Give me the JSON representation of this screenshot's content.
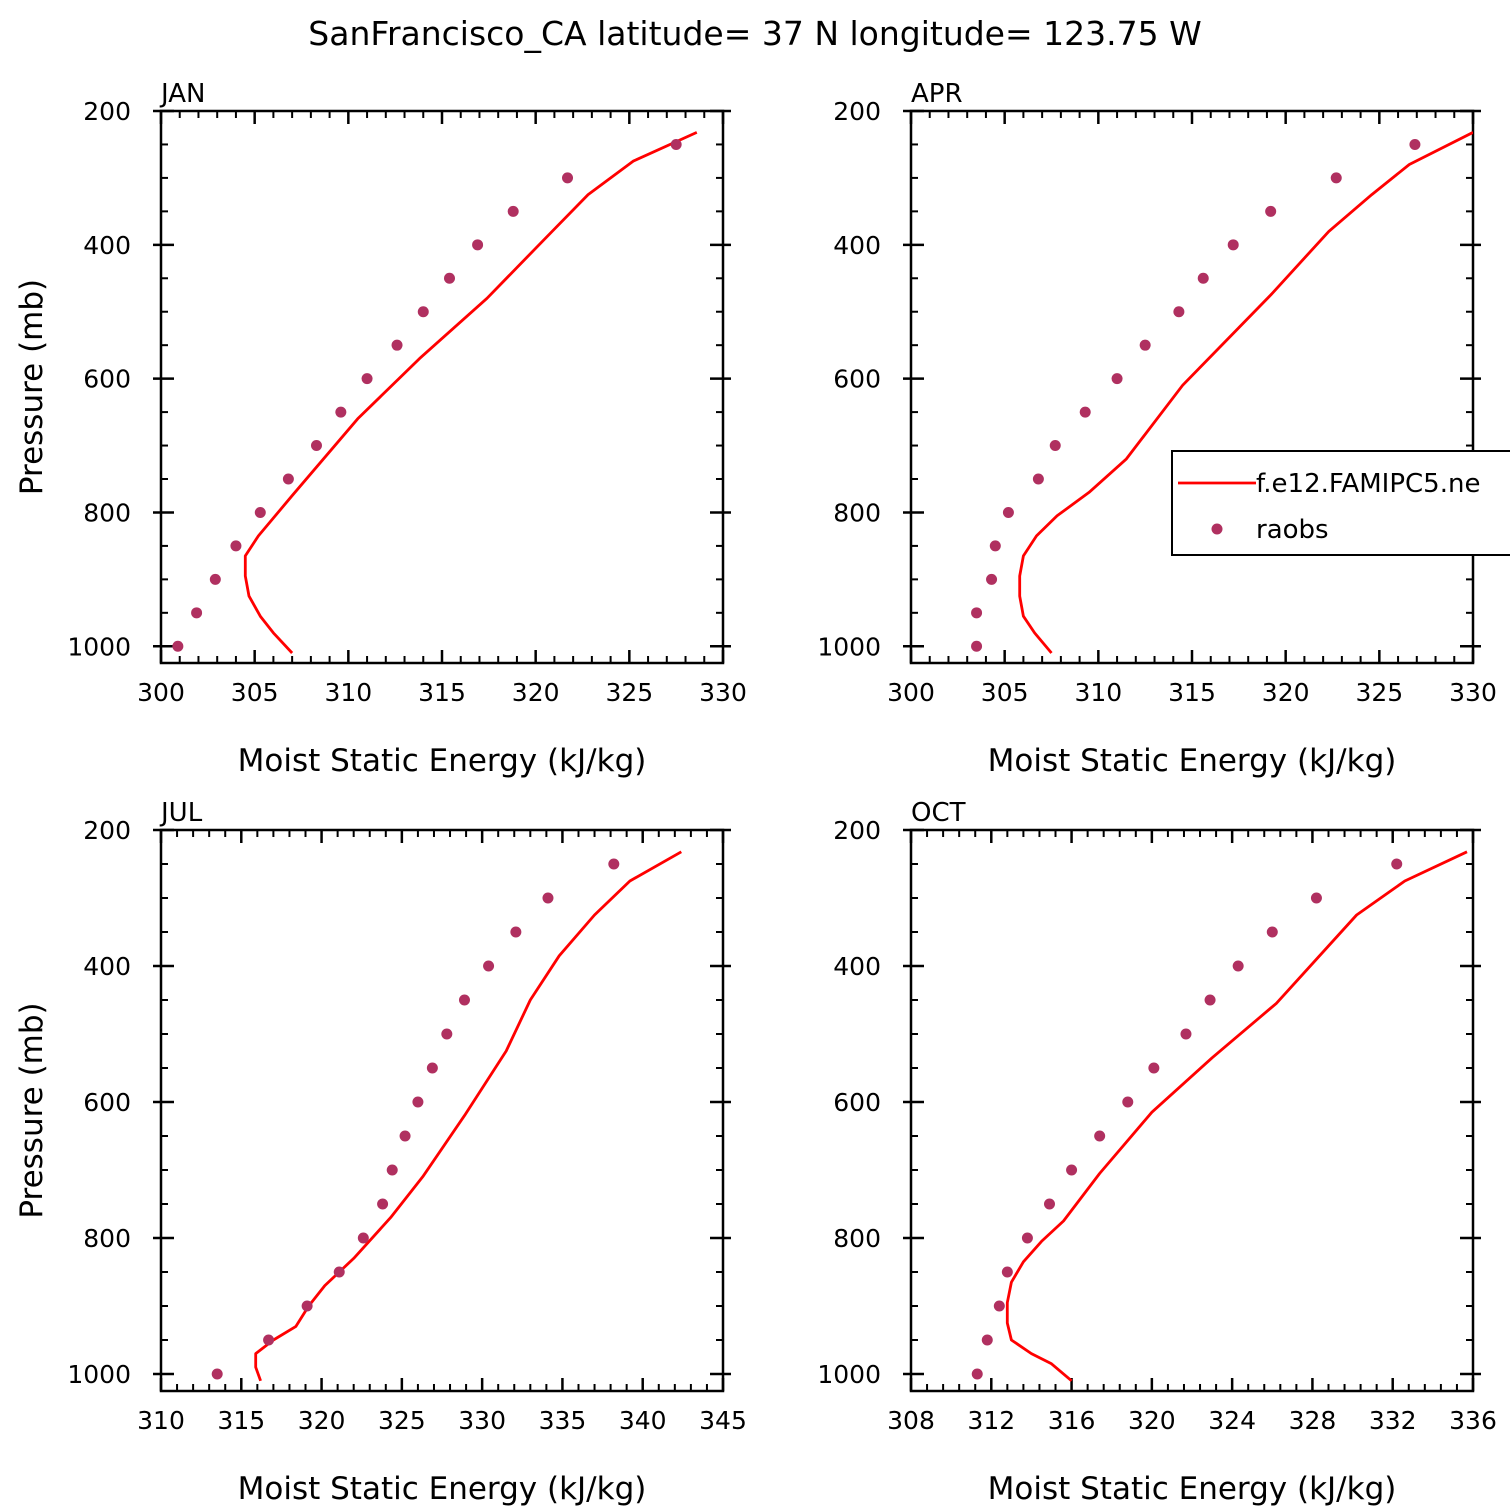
{
  "title": "SanFrancisco_CA  latitude= 37 N longitude= 123.75 W",
  "colors": {
    "model": "#ff0000",
    "obs": "#b03060",
    "axes": "#000000"
  },
  "legend": {
    "entries": [
      {
        "label": "f.e12.FAMIPC5.ne",
        "style": "line"
      },
      {
        "label": "raobs",
        "style": "marker"
      }
    ],
    "placement": "inside APR panel, right side, clipped at page edge"
  },
  "chart_data": [
    {
      "type": "line",
      "panel_label": "JAN",
      "xlabel": "Moist Static Energy (kJ/kg)",
      "ylabel": "Pressure (mb)",
      "xlim": [
        300,
        330
      ],
      "xticks": [
        300,
        305,
        310,
        315,
        320,
        325,
        330
      ],
      "xtick_labels": [
        "300",
        "305",
        "310",
        "315",
        "320",
        "325",
        "330"
      ],
      "ylim": [
        1025,
        200
      ],
      "yticks": [
        200,
        400,
        600,
        800,
        1000
      ],
      "ytick_labels": [
        "200",
        "400",
        "600",
        "800",
        "1000"
      ],
      "series": [
        {
          "style": "line",
          "x": [
            307.0,
            306.0,
            305.3,
            304.7,
            304.5,
            304.5,
            305.2,
            307.0,
            310.5,
            313.8,
            317.4,
            320.7,
            322.8,
            325.2,
            328.6
          ],
          "y": [
            1010,
            980,
            955,
            925,
            895,
            865,
            835,
            775,
            660,
            570,
            480,
            385,
            325,
            275,
            232
          ]
        },
        {
          "style": "marker",
          "x": [
            300.9,
            301.9,
            302.9,
            304.0,
            305.3,
            306.8,
            308.3,
            309.6,
            311.0,
            312.6,
            314.0,
            315.4,
            316.9,
            318.8,
            321.7,
            327.5
          ],
          "y": [
            1000,
            950,
            900,
            850,
            800,
            750,
            700,
            650,
            600,
            550,
            500,
            450,
            400,
            350,
            300,
            250
          ]
        }
      ]
    },
    {
      "type": "line",
      "panel_label": "APR",
      "xlabel": "Moist Static Energy (kJ/kg)",
      "ylabel": "",
      "xlim": [
        300,
        330
      ],
      "xticks": [
        300,
        305,
        310,
        315,
        320,
        325,
        330
      ],
      "xtick_labels": [
        "300",
        "305",
        "310",
        "315",
        "320",
        "325",
        "330"
      ],
      "ylim": [
        1025,
        200
      ],
      "yticks": [
        200,
        400,
        600,
        800,
        1000
      ],
      "ytick_labels": [
        "200",
        "400",
        "600",
        "800",
        "1000"
      ],
      "series": [
        {
          "style": "line",
          "x": [
            307.5,
            306.6,
            306.0,
            305.8,
            305.8,
            306.0,
            306.7,
            307.8,
            309.5,
            311.5,
            314.5,
            319.2,
            322.3,
            324.6,
            326.6,
            330.0
          ],
          "y": [
            1010,
            980,
            955,
            925,
            895,
            865,
            835,
            805,
            770,
            720,
            610,
            475,
            380,
            325,
            280,
            232
          ]
        },
        {
          "style": "marker",
          "x": [
            303.5,
            303.5,
            304.3,
            304.5,
            305.2,
            306.8,
            307.7,
            309.3,
            311.0,
            312.5,
            314.3,
            315.6,
            317.2,
            319.2,
            322.7,
            326.9
          ],
          "y": [
            1000,
            950,
            900,
            850,
            800,
            750,
            700,
            650,
            600,
            550,
            500,
            450,
            400,
            350,
            300,
            250
          ]
        }
      ]
    },
    {
      "type": "line",
      "panel_label": "JUL",
      "xlabel": "Moist Static Energy (kJ/kg)",
      "ylabel": "Pressure (mb)",
      "xlim": [
        310,
        345
      ],
      "xticks": [
        310,
        315,
        320,
        325,
        330,
        335,
        340,
        345
      ],
      "xtick_labels": [
        "310",
        "315",
        "320",
        "325",
        "330",
        "335",
        "340",
        "345"
      ],
      "ylim": [
        1025,
        200
      ],
      "yticks": [
        200,
        400,
        600,
        800,
        1000
      ],
      "ytick_labels": [
        "200",
        "400",
        "600",
        "800",
        "1000"
      ],
      "series": [
        {
          "style": "line",
          "x": [
            316.2,
            315.9,
            315.9,
            317.0,
            318.4,
            319.2,
            320.2,
            322.0,
            324.3,
            326.3,
            328.9,
            331.5,
            333.0,
            334.8,
            337.0,
            339.2,
            342.4
          ],
          "y": [
            1010,
            990,
            970,
            950,
            930,
            900,
            870,
            830,
            770,
            710,
            620,
            525,
            450,
            385,
            325,
            275,
            232
          ]
        },
        {
          "style": "marker",
          "x": [
            313.5,
            316.7,
            319.1,
            321.1,
            322.6,
            323.8,
            324.4,
            325.2,
            326.0,
            326.9,
            327.8,
            328.9,
            330.4,
            332.1,
            334.1,
            338.2
          ],
          "y": [
            1000,
            950,
            900,
            850,
            800,
            750,
            700,
            650,
            600,
            550,
            500,
            450,
            400,
            350,
            300,
            250
          ]
        }
      ]
    },
    {
      "type": "line",
      "panel_label": "OCT",
      "xlabel": "Moist Static Energy (kJ/kg)",
      "ylabel": "",
      "xlim": [
        308,
        336
      ],
      "xticks": [
        308,
        312,
        316,
        320,
        324,
        328,
        332,
        336
      ],
      "xtick_labels": [
        "308",
        "312",
        "316",
        "320",
        "324",
        "328",
        "332",
        "336"
      ],
      "ylim": [
        1025,
        200
      ],
      "yticks": [
        200,
        400,
        600,
        800,
        1000
      ],
      "ytick_labels": [
        "200",
        "400",
        "600",
        "800",
        "1000"
      ],
      "series": [
        {
          "style": "line",
          "x": [
            316.0,
            315.0,
            314.0,
            313.0,
            312.8,
            312.8,
            313.0,
            313.6,
            314.5,
            315.6,
            317.4,
            320.0,
            323.0,
            326.2,
            330.2,
            332.6,
            335.7
          ],
          "y": [
            1010,
            985,
            970,
            950,
            925,
            895,
            865,
            835,
            805,
            775,
            705,
            615,
            535,
            455,
            325,
            275,
            232
          ]
        },
        {
          "style": "marker",
          "x": [
            311.3,
            311.8,
            312.4,
            312.8,
            313.8,
            314.9,
            316.0,
            317.4,
            318.8,
            320.1,
            321.7,
            322.9,
            324.3,
            326.0,
            328.2,
            332.2
          ],
          "y": [
            1000,
            950,
            900,
            850,
            800,
            750,
            700,
            650,
            600,
            550,
            500,
            450,
            400,
            350,
            300,
            250
          ]
        }
      ]
    }
  ]
}
